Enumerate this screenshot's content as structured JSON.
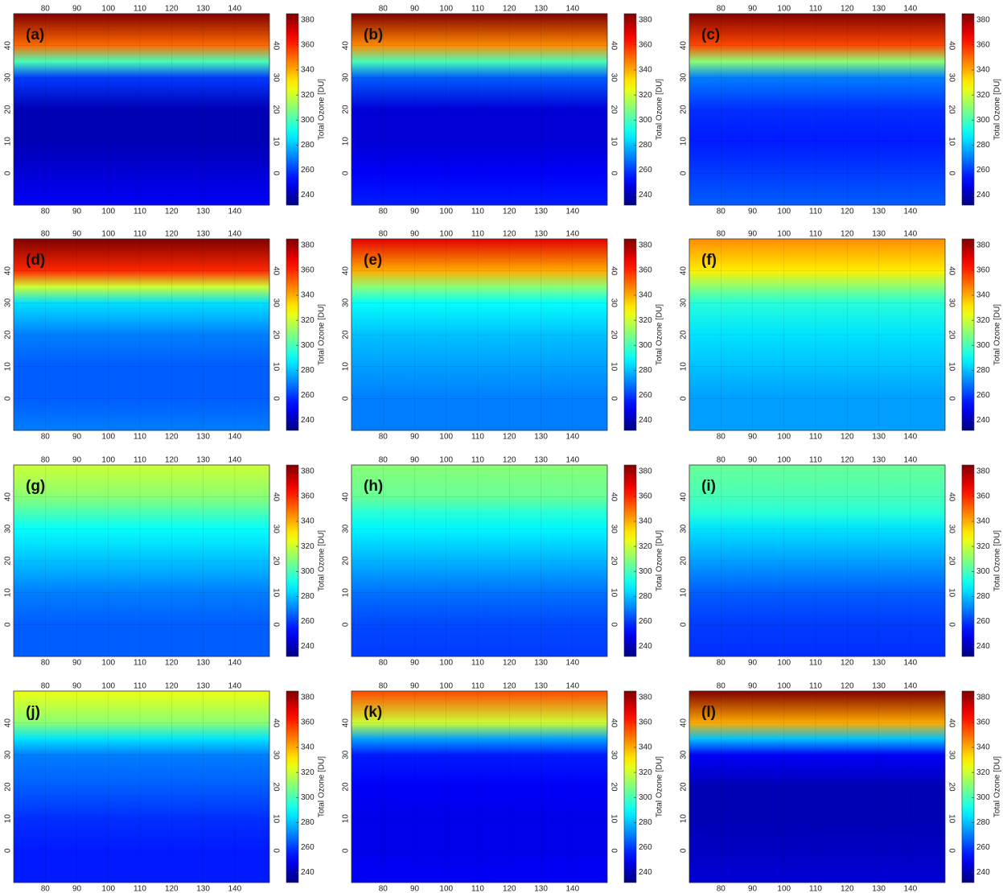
{
  "map": {
    "xlim": [
      70,
      151
    ],
    "ylim": [
      -10,
      50
    ],
    "xticks": [
      80,
      90,
      100,
      110,
      120,
      130,
      140
    ],
    "yticks": [
      0,
      10,
      20,
      30,
      40
    ],
    "lat": [
      -10,
      0,
      10,
      20,
      30,
      35,
      40,
      50
    ]
  },
  "colorbar": {
    "label": "Total Ozone [DU]",
    "clim": [
      232,
      385
    ],
    "ticks": [
      240,
      260,
      280,
      300,
      320,
      340,
      360,
      380
    ]
  },
  "panels": [
    {
      "label": "(a)",
      "values": [
        250,
        245,
        240,
        240,
        260,
        300,
        350,
        385
      ]
    },
    {
      "label": "(b)",
      "values": [
        255,
        250,
        245,
        245,
        265,
        300,
        345,
        385
      ]
    },
    {
      "label": "(c)",
      "values": [
        265,
        260,
        255,
        258,
        270,
        310,
        355,
        385
      ]
    },
    {
      "label": "(d)",
      "values": [
        270,
        265,
        265,
        270,
        285,
        320,
        360,
        385
      ]
    },
    {
      "label": "(e)",
      "values": [
        270,
        270,
        275,
        280,
        290,
        310,
        340,
        370
      ]
    },
    {
      "label": "(f)",
      "values": [
        275,
        275,
        280,
        285,
        295,
        310,
        330,
        345
      ]
    },
    {
      "label": "(g)",
      "values": [
        265,
        265,
        270,
        280,
        290,
        300,
        310,
        320
      ]
    },
    {
      "label": "(h)",
      "values": [
        260,
        262,
        268,
        278,
        288,
        295,
        305,
        310
      ]
    },
    {
      "label": "(i)",
      "values": [
        258,
        260,
        265,
        275,
        285,
        295,
        300,
        305
      ]
    },
    {
      "label": "(j)",
      "values": [
        255,
        255,
        258,
        265,
        270,
        285,
        310,
        325
      ]
    },
    {
      "label": "(k)",
      "values": [
        250,
        248,
        248,
        250,
        255,
        275,
        320,
        355
      ]
    },
    {
      "label": "(l)",
      "values": [
        245,
        242,
        240,
        240,
        250,
        280,
        340,
        385
      ]
    }
  ]
}
